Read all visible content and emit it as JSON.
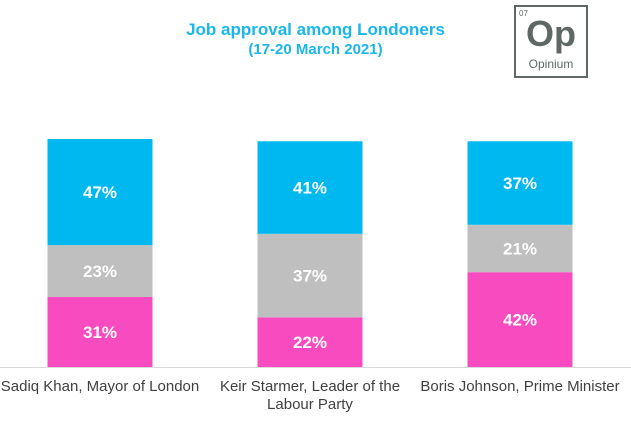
{
  "chart_data": {
    "type": "bar",
    "stacked": true,
    "title": "Job approval among Londoners",
    "subtitle": "(17-20 March 2021)",
    "categories": [
      "Sadiq Khan, Mayor of London",
      "Keir Starmer, Leader of the Labour Party",
      "Boris Johnson, Prime Minister"
    ],
    "series": [
      {
        "values": [
          31,
          22,
          42
        ],
        "color": "#f84bbf"
      },
      {
        "values": [
          23,
          37,
          21
        ],
        "color": "#bfbfbf"
      },
      {
        "values": [
          47,
          41,
          37
        ],
        "color": "#00b8f0"
      }
    ],
    "value_suffix": "%",
    "ylim": [
      0,
      101
    ],
    "grid": false,
    "legend": "none"
  },
  "logo": {
    "number": "07",
    "symbol": "Op",
    "name": "Opinium"
  }
}
